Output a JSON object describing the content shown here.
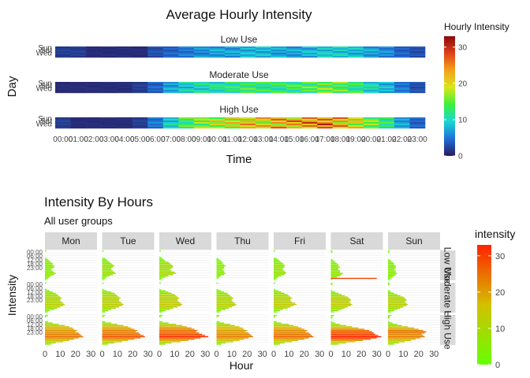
{
  "chart_data": [
    {
      "type": "heatmap",
      "title": "Average Hourly Intensity",
      "xlabel": "Time",
      "ylabel": "Day",
      "facets": [
        "Low Use",
        "Moderate Use",
        "High Use"
      ],
      "x_tick_labels": [
        "00:00",
        "01:00",
        "02:00",
        "03:00",
        "04:00",
        "05:00",
        "06:00",
        "07:00",
        "08:00",
        "09:00",
        "10:00",
        "11:00",
        "12:00",
        "13:00",
        "14:00",
        "15:00",
        "16:00",
        "17:00",
        "18:00",
        "19:00",
        "20:00",
        "21:00",
        "22:00",
        "23:00"
      ],
      "y_tick_labels": [
        "Sun",
        "Sat",
        "Wed"
      ],
      "legend_title": "Hourly Intensity",
      "legend_ticks": [
        0,
        10,
        20,
        30
      ],
      "color_range": [
        0,
        33
      ],
      "colors": [
        "#2a1a5e",
        "#1f6fd8",
        "#19d6d6",
        "#3cf03c",
        "#d8e619",
        "#f3a31a",
        "#e0401a",
        "#8b0a0a"
      ],
      "series": [
        {
          "name": "Low Use",
          "values": [
            2,
            2,
            1,
            1,
            1,
            1,
            3,
            4,
            5,
            6,
            7,
            7,
            8,
            8,
            7,
            7,
            8,
            9,
            9,
            8,
            7,
            6,
            4,
            3
          ]
        },
        {
          "name": "Moderate Use",
          "values": [
            1,
            1,
            1,
            1,
            1,
            2,
            4,
            7,
            9,
            10,
            11,
            12,
            13,
            12,
            12,
            13,
            14,
            15,
            14,
            12,
            10,
            8,
            5,
            3
          ]
        },
        {
          "name": "High Use",
          "values": [
            2,
            1,
            1,
            1,
            1,
            2,
            5,
            9,
            13,
            16,
            18,
            19,
            21,
            20,
            22,
            23,
            24,
            25,
            22,
            19,
            16,
            12,
            7,
            4
          ]
        }
      ]
    },
    {
      "type": "bar",
      "title": "Intensity By Hours",
      "subtitle": "All user groups",
      "xlabel": "Hour",
      "ylabel": "Intensity",
      "days": [
        "Mon",
        "Tue",
        "Wed",
        "Thu",
        "Fri",
        "Sat",
        "Sun"
      ],
      "groups": [
        "Low Use",
        "Moderate Use",
        "High Use"
      ],
      "strip_labels": [
        "Low Use",
        "Moderate Use",
        "High Use"
      ],
      "x_ticks": [
        0,
        10,
        20,
        30
      ],
      "xlim": [
        0,
        33
      ],
      "y_tick_labels": [
        "00:00",
        "06:00",
        "12:00",
        "18:00",
        "23:00"
      ],
      "legend_title": "intensity",
      "legend_ticks": [
        0,
        10,
        20,
        30
      ],
      "color_low": "#66ff00",
      "color_mid": "#d4c000",
      "color_high": "#ff2200",
      "color_range": [
        0,
        33
      ],
      "hours": 24,
      "profiles": {
        "Low Use": {
          "Mon": [
            1,
            0,
            0,
            0,
            0,
            0,
            1,
            2,
            3,
            4,
            5,
            5,
            6,
            6,
            5,
            4,
            5,
            6,
            7,
            6,
            4,
            3,
            2,
            1
          ],
          "Tue": [
            1,
            0,
            0,
            0,
            0,
            0,
            2,
            3,
            4,
            5,
            6,
            7,
            8,
            7,
            6,
            6,
            7,
            8,
            9,
            7,
            5,
            3,
            2,
            1
          ],
          "Wed": [
            1,
            0,
            0,
            0,
            0,
            1,
            2,
            3,
            4,
            6,
            7,
            8,
            9,
            9,
            8,
            7,
            8,
            10,
            11,
            9,
            6,
            4,
            2,
            1
          ],
          "Thu": [
            0,
            0,
            0,
            0,
            0,
            0,
            1,
            2,
            3,
            4,
            4,
            5,
            6,
            5,
            5,
            4,
            5,
            5,
            6,
            5,
            3,
            2,
            1,
            0
          ],
          "Fri": [
            1,
            0,
            0,
            0,
            0,
            0,
            2,
            3,
            4,
            5,
            6,
            7,
            7,
            7,
            6,
            6,
            7,
            8,
            8,
            7,
            5,
            3,
            2,
            1
          ],
          "Sat": [
            1,
            1,
            0,
            0,
            0,
            0,
            0,
            1,
            2,
            3,
            4,
            5,
            5,
            6,
            5,
            5,
            6,
            6,
            8,
            7,
            6,
            4,
            30,
            1
          ],
          "Sun": [
            1,
            1,
            0,
            0,
            0,
            0,
            0,
            1,
            2,
            3,
            4,
            4,
            5,
            5,
            5,
            4,
            5,
            5,
            6,
            5,
            4,
            3,
            2,
            1
          ]
        },
        "Moderate Use": {
          "Mon": [
            1,
            0,
            0,
            0,
            0,
            1,
            3,
            5,
            7,
            8,
            9,
            10,
            11,
            10,
            10,
            11,
            12,
            13,
            12,
            10,
            8,
            6,
            3,
            2
          ],
          "Tue": [
            1,
            0,
            0,
            0,
            0,
            1,
            3,
            6,
            8,
            9,
            10,
            11,
            12,
            11,
            11,
            12,
            13,
            14,
            13,
            11,
            9,
            6,
            4,
            2
          ],
          "Wed": [
            1,
            0,
            0,
            0,
            0,
            1,
            4,
            6,
            8,
            10,
            11,
            12,
            13,
            12,
            12,
            13,
            14,
            15,
            14,
            12,
            9,
            7,
            4,
            2
          ],
          "Thu": [
            1,
            0,
            0,
            0,
            0,
            1,
            3,
            5,
            7,
            8,
            9,
            10,
            11,
            10,
            10,
            11,
            12,
            13,
            12,
            10,
            8,
            6,
            3,
            2
          ],
          "Fri": [
            1,
            0,
            0,
            0,
            0,
            1,
            3,
            5,
            7,
            9,
            10,
            11,
            12,
            11,
            11,
            12,
            14,
            15,
            13,
            11,
            9,
            6,
            4,
            2
          ],
          "Sat": [
            1,
            1,
            0,
            0,
            0,
            0,
            1,
            3,
            5,
            7,
            9,
            11,
            12,
            13,
            13,
            12,
            13,
            14,
            13,
            11,
            9,
            7,
            5,
            2
          ],
          "Sun": [
            1,
            1,
            0,
            0,
            0,
            0,
            1,
            2,
            4,
            6,
            8,
            10,
            11,
            12,
            12,
            11,
            12,
            13,
            12,
            10,
            8,
            6,
            4,
            2
          ]
        },
        "High Use": {
          "Mon": [
            2,
            1,
            0,
            0,
            0,
            2,
            5,
            9,
            13,
            16,
            18,
            19,
            21,
            20,
            22,
            23,
            24,
            25,
            22,
            19,
            16,
            12,
            7,
            4
          ],
          "Tue": [
            2,
            1,
            0,
            0,
            0,
            2,
            6,
            10,
            14,
            17,
            19,
            21,
            23,
            22,
            24,
            25,
            27,
            28,
            25,
            21,
            17,
            13,
            8,
            4
          ],
          "Wed": [
            2,
            1,
            0,
            0,
            0,
            2,
            6,
            11,
            15,
            18,
            21,
            23,
            25,
            24,
            26,
            28,
            30,
            32,
            27,
            23,
            19,
            14,
            8,
            4
          ],
          "Thu": [
            2,
            1,
            0,
            0,
            0,
            2,
            5,
            9,
            12,
            15,
            17,
            18,
            20,
            19,
            21,
            22,
            23,
            24,
            21,
            18,
            15,
            11,
            6,
            3
          ],
          "Fri": [
            2,
            1,
            0,
            0,
            0,
            2,
            5,
            10,
            13,
            16,
            18,
            20,
            22,
            21,
            23,
            24,
            25,
            26,
            23,
            20,
            16,
            12,
            7,
            4
          ],
          "Sat": [
            2,
            1,
            1,
            0,
            0,
            1,
            3,
            6,
            10,
            14,
            18,
            22,
            25,
            27,
            28,
            29,
            31,
            33,
            30,
            26,
            21,
            16,
            10,
            5
          ],
          "Sun": [
            2,
            1,
            1,
            0,
            0,
            1,
            3,
            6,
            9,
            13,
            17,
            20,
            23,
            25,
            24,
            22,
            23,
            24,
            21,
            18,
            15,
            11,
            7,
            4
          ]
        }
      }
    }
  ]
}
